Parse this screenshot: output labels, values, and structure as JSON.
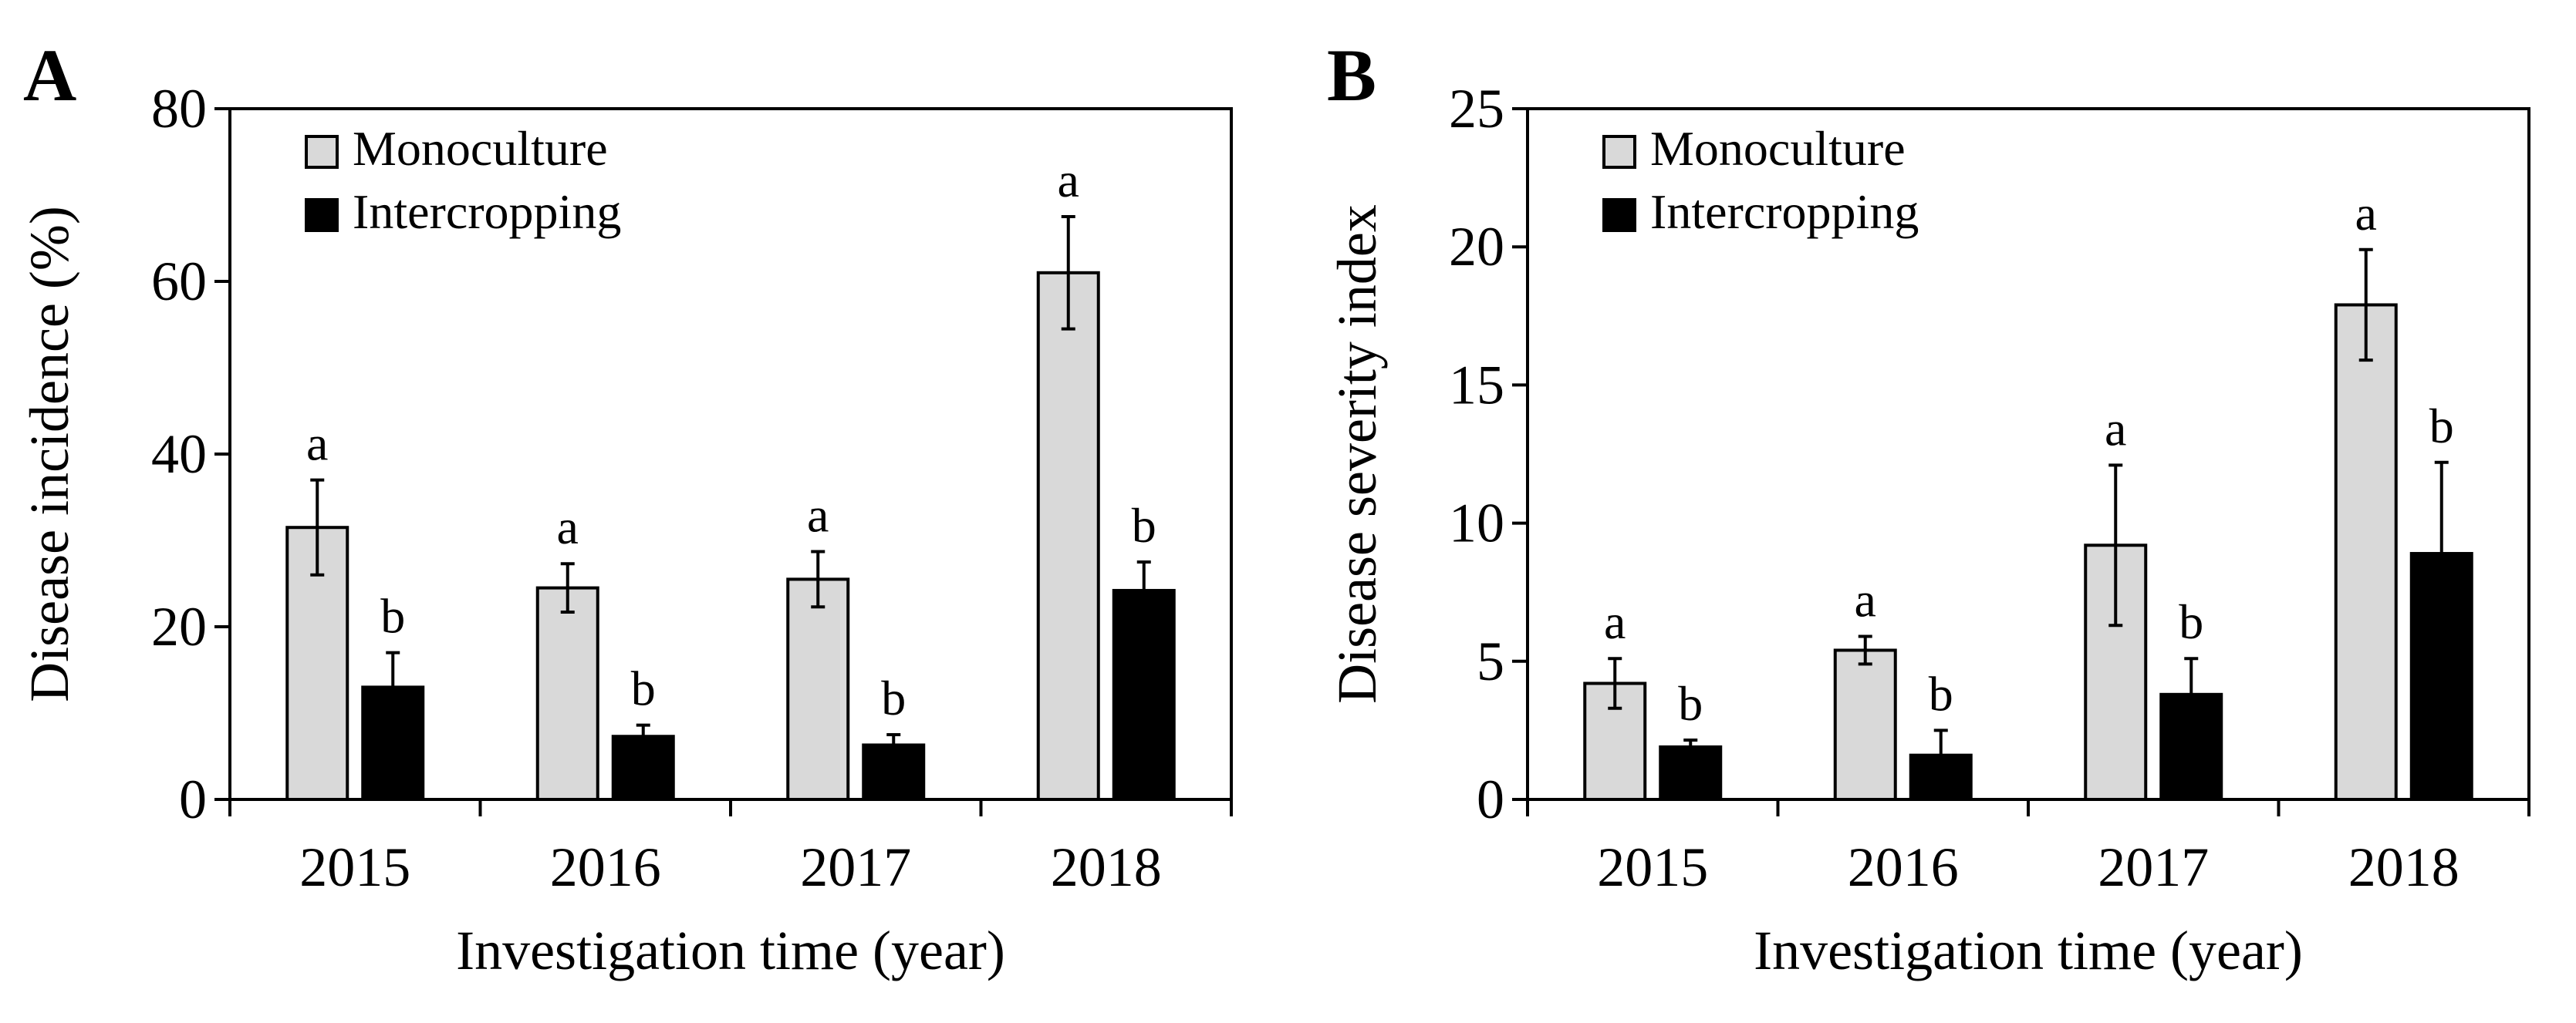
{
  "figure": {
    "legend": {
      "items": [
        {
          "label": "Monoculture",
          "color": "#d9d9d9"
        },
        {
          "label": "Intercropping",
          "color": "#000000"
        }
      ]
    }
  },
  "chart_data": [
    {
      "type": "bar",
      "panel": "A",
      "title": "",
      "xlabel": "Investigation time (year)",
      "ylabel": "Disease incidence (%)",
      "categories": [
        "2015",
        "2016",
        "2017",
        "2018"
      ],
      "ylim": [
        0,
        80
      ],
      "yticks": [
        0,
        20,
        40,
        60,
        80
      ],
      "legend_position": "top-left",
      "series": [
        {
          "name": "Monoculture",
          "color": "#d9d9d9",
          "values": [
            31.5,
            24.5,
            25.5,
            61.0
          ],
          "errors": [
            5.5,
            2.8,
            3.2,
            6.5
          ],
          "letters": [
            "a",
            "a",
            "a",
            "a"
          ]
        },
        {
          "name": "Intercropping",
          "color": "#000000",
          "values": [
            13.0,
            7.3,
            6.3,
            24.2
          ],
          "errors": [
            4.0,
            1.3,
            1.2,
            3.3
          ],
          "letters": [
            "b",
            "b",
            "b",
            "b"
          ]
        }
      ]
    },
    {
      "type": "bar",
      "panel": "B",
      "title": "",
      "xlabel": "Investigation time (year)",
      "ylabel": "Disease severity index",
      "categories": [
        "2015",
        "2016",
        "2017",
        "2018"
      ],
      "ylim": [
        0,
        25
      ],
      "yticks": [
        0,
        5,
        10,
        15,
        20,
        25
      ],
      "legend_position": "top-left",
      "series": [
        {
          "name": "Monoculture",
          "color": "#d9d9d9",
          "values": [
            4.2,
            5.4,
            9.2,
            17.9
          ],
          "errors": [
            0.9,
            0.5,
            2.9,
            2.0
          ],
          "letters": [
            "a",
            "a",
            "a",
            "a"
          ]
        },
        {
          "name": "Intercropping",
          "color": "#000000",
          "values": [
            1.9,
            1.6,
            3.8,
            8.9
          ],
          "errors": [
            0.25,
            0.9,
            1.3,
            3.3
          ],
          "letters": [
            "b",
            "b",
            "b",
            "b"
          ]
        }
      ]
    }
  ]
}
